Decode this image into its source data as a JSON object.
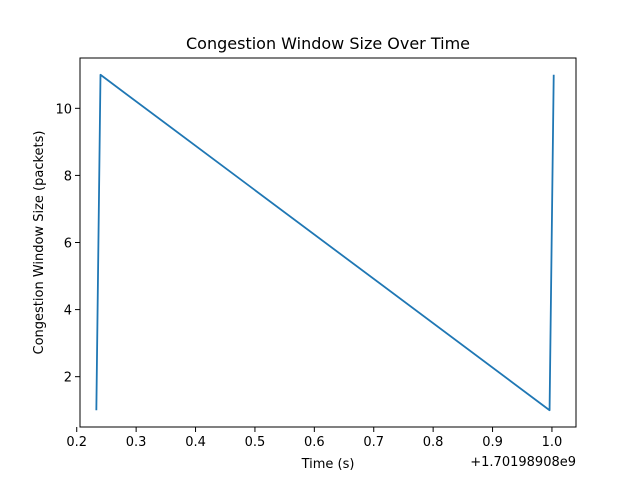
{
  "chart_data": {
    "type": "line",
    "title": "Congestion Window Size Over Time",
    "xlabel": "Time (s)",
    "ylabel": "Congestion Window Size (packets)",
    "x_offset_label": "+1.70198908e9",
    "xlim": [
      0.2055,
      1.0405
    ],
    "ylim": [
      0.5,
      11.5
    ],
    "x_ticks": [
      0.2,
      0.3,
      0.4,
      0.5,
      0.6,
      0.7,
      0.8,
      0.9,
      1.0
    ],
    "x_tick_labels": [
      "0.2",
      "0.3",
      "0.4",
      "0.5",
      "0.6",
      "0.7",
      "0.8",
      "0.9",
      "1.0"
    ],
    "y_ticks": [
      2,
      4,
      6,
      8,
      10
    ],
    "y_tick_labels": [
      "2",
      "4",
      "6",
      "8",
      "10"
    ],
    "grid": false,
    "series": [
      {
        "color": "#1f77b4",
        "x": [
          0.233,
          0.24,
          0.996,
          1.003
        ],
        "y": [
          1,
          11,
          1,
          11
        ]
      }
    ]
  }
}
